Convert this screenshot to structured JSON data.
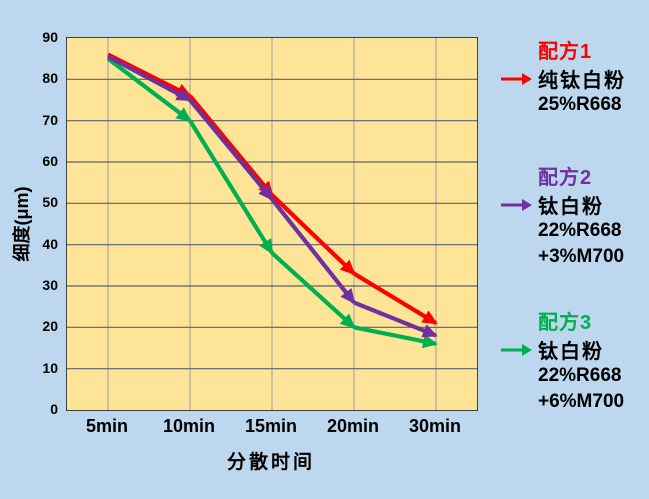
{
  "chart_data": {
    "type": "line",
    "categories": [
      "5min",
      "10min",
      "15min",
      "20min",
      "30min"
    ],
    "series": [
      {
        "name": "配方1",
        "description_lines": [
          "纯钛白粉",
          "25%R668"
        ],
        "color": "#FF0000",
        "values": [
          86,
          76,
          52,
          33,
          21
        ]
      },
      {
        "name": "配方2",
        "description_lines": [
          "钛白粉",
          "22%R668",
          "+3%M700"
        ],
        "color": "#7030A0",
        "values": [
          85.5,
          75,
          51,
          26,
          18
        ]
      },
      {
        "name": "配方3",
        "description_lines": [
          "钛白粉",
          "22%R668",
          "+6%M700"
        ],
        "color": "#00B050",
        "values": [
          85,
          70,
          38,
          20,
          16
        ]
      }
    ],
    "title": "",
    "xlabel": "分散时间",
    "ylabel": "细度(μm)",
    "ylim": [
      0,
      90
    ],
    "ytick_step": 10,
    "y_ticks": [
      "0",
      "10",
      "20",
      "30",
      "40",
      "50",
      "60",
      "70",
      "80",
      "90"
    ],
    "grid": true,
    "line_style": "thick-with-arrowheads-at-segment-ends",
    "legend_position": "right"
  },
  "legend": {
    "entries": [
      {
        "title": "配方1",
        "color": "#FF0000",
        "lines": [
          "纯钛白粉",
          "25%R668"
        ]
      },
      {
        "title": "配方2",
        "color": "#7030A0",
        "lines": [
          "钛白粉",
          "22%R668",
          "+3%M700"
        ]
      },
      {
        "title": "配方3",
        "color": "#00B050",
        "lines": [
          "钛白粉",
          "22%R668",
          "+6%M700"
        ]
      }
    ]
  },
  "colors": {
    "canvas_bg": "#BDD7EE",
    "plot_bg": "#FDE496",
    "h_gridline": "#5A6170",
    "v_gridline": "#9AA0A8",
    "plot_border": "#3F3F3F",
    "text": "#000000"
  }
}
